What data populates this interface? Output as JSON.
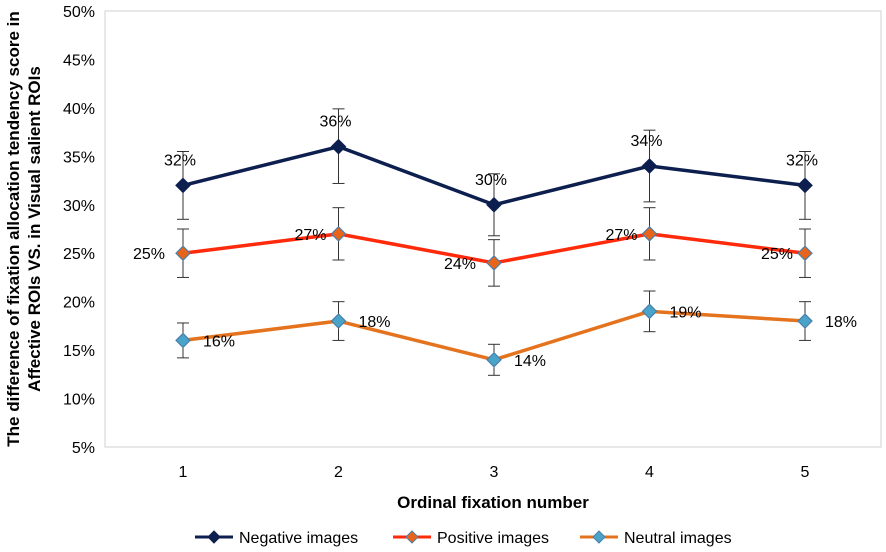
{
  "chart_data": {
    "type": "line",
    "title": "",
    "xlabel": "Ordinal fixation number",
    "ylabel_lines": [
      "The difference of fixation allocation tendency score in",
      "Affective ROIs VS. in Visual salient ROIs"
    ],
    "x": [
      1,
      2,
      3,
      4,
      5
    ],
    "x_tick_labels": [
      "1",
      "2",
      "3",
      "4",
      "5"
    ],
    "ylim": [
      5,
      50
    ],
    "y_ticks": [
      5,
      10,
      15,
      20,
      25,
      30,
      35,
      40,
      45,
      50
    ],
    "y_tick_labels": [
      "5%",
      "10%",
      "15%",
      "20%",
      "25%",
      "30%",
      "35%",
      "40%",
      "45%",
      "50%"
    ],
    "grid": false,
    "legend_position": "bottom",
    "series": [
      {
        "name": "Negative images",
        "color": "#0d1f4f",
        "marker_fill": "#0d1f4f",
        "values": [
          32,
          36,
          30,
          34,
          32
        ],
        "labels": [
          "32%",
          "36%",
          "30%",
          "34%",
          "32%"
        ],
        "error_low": [
          28.5,
          32.2,
          26.8,
          30.3,
          28.5
        ],
        "error_high": [
          35.5,
          39.9,
          33.2,
          37.7,
          35.5
        ]
      },
      {
        "name": "Positive images",
        "color": "#ff2a0a",
        "marker_fill": "#e8641a",
        "values": [
          25,
          27,
          24,
          27,
          25
        ],
        "labels": [
          "25%",
          "27%",
          "24%",
          "27%",
          "25%"
        ],
        "error_low": [
          22.5,
          24.3,
          21.6,
          24.3,
          22.5
        ],
        "error_high": [
          27.5,
          29.7,
          26.4,
          29.7,
          27.5
        ]
      },
      {
        "name": "Neutral images",
        "color": "#e5731e",
        "marker_fill": "#4aa3c8",
        "values": [
          16,
          18,
          14,
          19,
          18
        ],
        "labels": [
          "16%",
          "18%",
          "14%",
          "19%",
          "18%"
        ],
        "error_low": [
          14.2,
          16.0,
          12.4,
          16.9,
          16.0
        ],
        "error_high": [
          17.8,
          20.0,
          15.6,
          21.1,
          20.0
        ]
      }
    ]
  }
}
